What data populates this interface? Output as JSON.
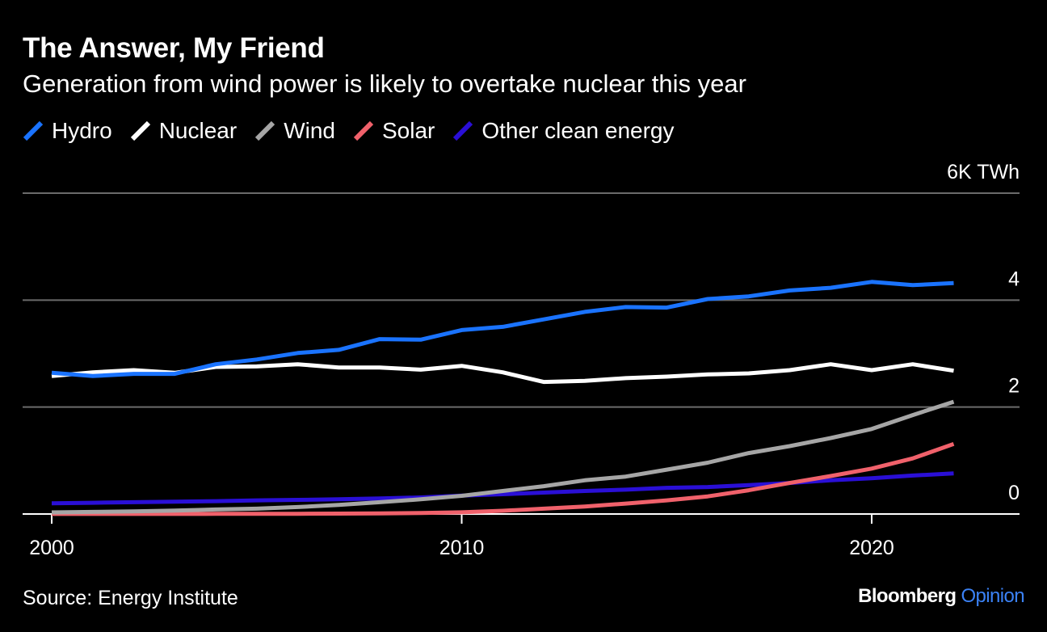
{
  "header": {
    "title": "The Answer, My Friend",
    "subtitle": "Generation from wind power is likely to overtake nuclear this year"
  },
  "legend": [
    {
      "label": "Hydro",
      "color": "#1a73ff"
    },
    {
      "label": "Nuclear",
      "color": "#ffffff"
    },
    {
      "label": "Wind",
      "color": "#a6a6a6"
    },
    {
      "label": "Solar",
      "color": "#f0616b"
    },
    {
      "label": "Other clean energy",
      "color": "#2a0fd6"
    }
  ],
  "footer": {
    "source": "Source: Energy Institute",
    "brand_main": "Bloomberg",
    "brand_accent": "Opinion"
  },
  "chart_data": {
    "type": "line",
    "title": "The Answer, My Friend",
    "subtitle": "Generation from wind power is likely to overtake nuclear this year",
    "xlabel": "",
    "ylabel": "TWh",
    "unit_label": "6K TWh",
    "x": [
      2000,
      2001,
      2002,
      2003,
      2004,
      2005,
      2006,
      2007,
      2008,
      2009,
      2010,
      2011,
      2012,
      2013,
      2014,
      2015,
      2016,
      2017,
      2018,
      2019,
      2020,
      2021,
      2022
    ],
    "xlim": [
      2000,
      2023.6
    ],
    "ylim": [
      0,
      6000
    ],
    "x_ticks": [
      2000,
      2010,
      2020
    ],
    "x_tick_labels": [
      "2000",
      "2010",
      "2020"
    ],
    "y_ticks": [
      0,
      2000,
      4000,
      6000
    ],
    "y_tick_labels": [
      "0",
      "2",
      "4",
      "6K TWh"
    ],
    "grid": true,
    "legend_position": "top-left",
    "series": [
      {
        "name": "Hydro",
        "color": "#1a73ff",
        "values": [
          2640,
          2580,
          2620,
          2620,
          2800,
          2890,
          3010,
          3070,
          3270,
          3260,
          3440,
          3500,
          3640,
          3780,
          3870,
          3860,
          4020,
          4070,
          4180,
          4230,
          4340,
          4280,
          4320
        ]
      },
      {
        "name": "Nuclear",
        "color": "#ffffff",
        "values": [
          2580,
          2650,
          2690,
          2640,
          2750,
          2760,
          2800,
          2740,
          2740,
          2700,
          2770,
          2650,
          2470,
          2490,
          2540,
          2570,
          2610,
          2630,
          2690,
          2800,
          2690,
          2800,
          2680
        ]
      },
      {
        "name": "Wind",
        "color": "#a6a6a6",
        "values": [
          30,
          40,
          50,
          65,
          85,
          100,
          130,
          170,
          220,
          275,
          340,
          430,
          520,
          630,
          700,
          830,
          960,
          1140,
          1270,
          1420,
          1590,
          1850,
          2100
        ]
      },
      {
        "name": "Solar",
        "color": "#f0616b",
        "values": [
          1,
          1,
          2,
          2,
          3,
          4,
          5,
          7,
          12,
          20,
          32,
          60,
          100,
          140,
          195,
          255,
          330,
          445,
          580,
          710,
          850,
          1040,
          1310
        ]
      },
      {
        "name": "Other clean energy",
        "color": "#2a0fd6",
        "values": [
          200,
          210,
          220,
          230,
          240,
          255,
          265,
          275,
          290,
          310,
          345,
          370,
          400,
          430,
          455,
          490,
          505,
          540,
          580,
          630,
          670,
          720,
          760
        ]
      }
    ]
  }
}
